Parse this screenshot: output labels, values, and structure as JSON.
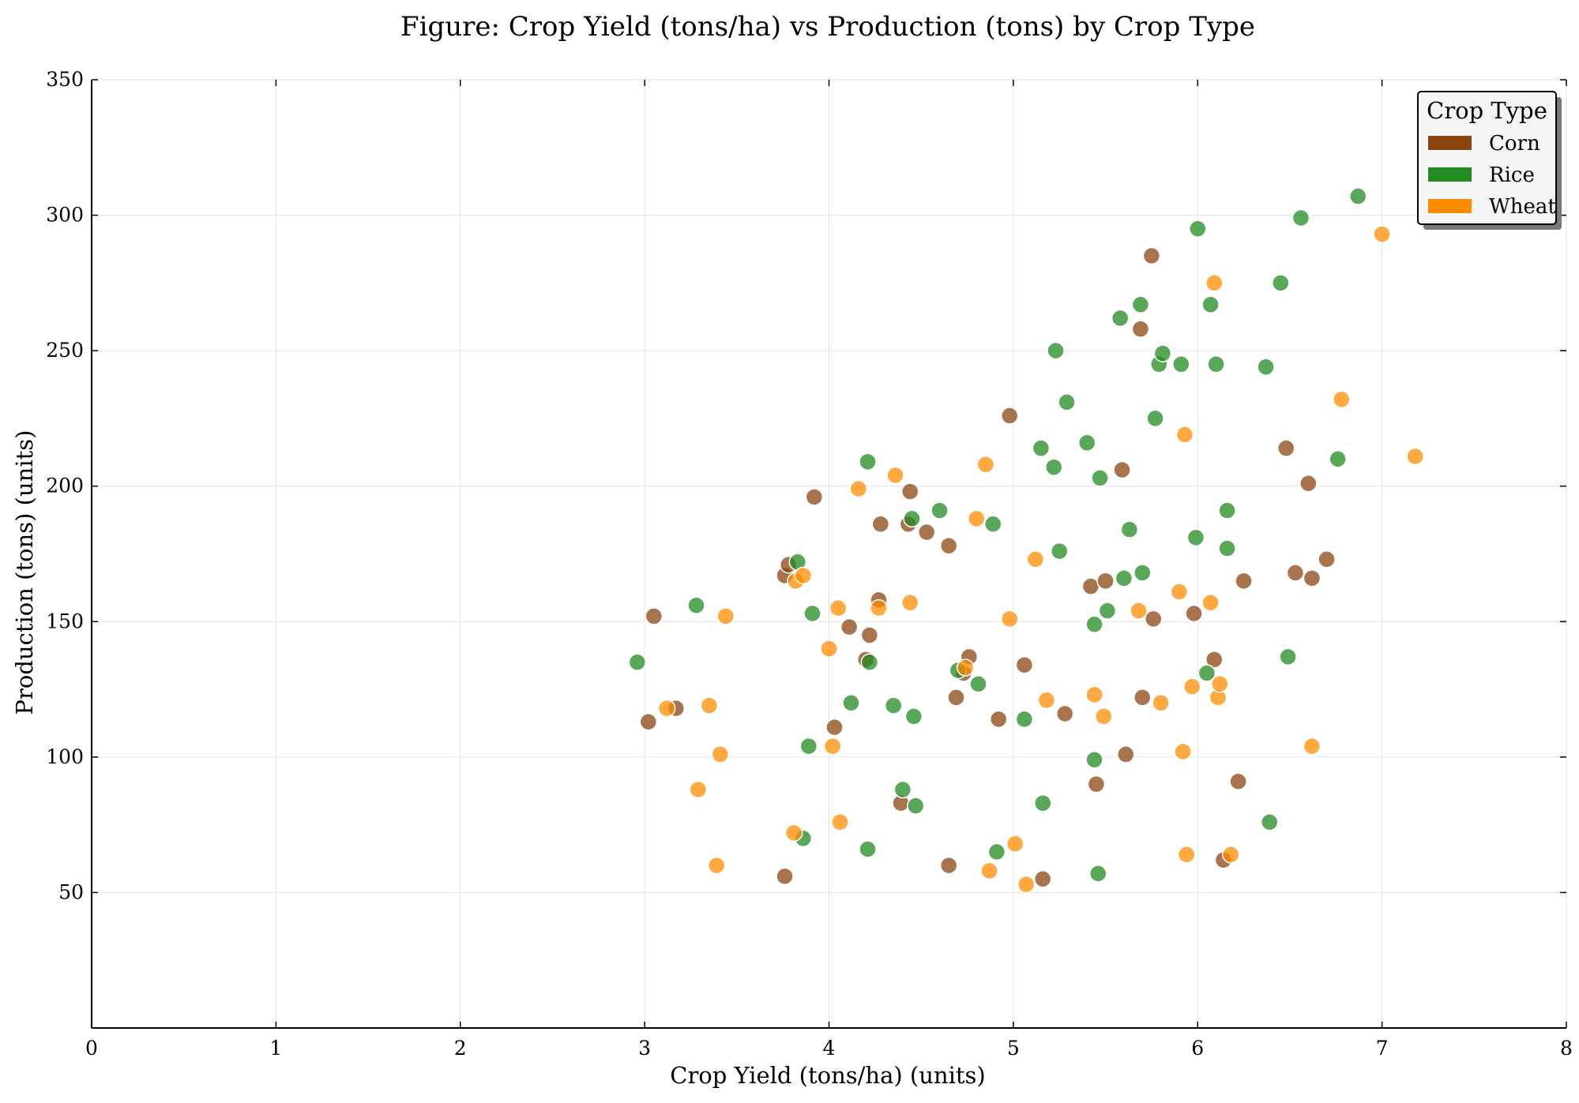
{
  "chart_data": {
    "type": "scatter",
    "title": "Figure: Crop Yield (tons/ha) vs Production (tons) by Crop Type",
    "xlabel": "Crop Yield (tons/ha) (units)",
    "ylabel": "Production (tons) (units)",
    "xlim": [
      0,
      8
    ],
    "ylim": [
      0,
      350
    ],
    "xticks": [
      0,
      1,
      2,
      3,
      4,
      5,
      6,
      7,
      8
    ],
    "yticks": [
      50,
      100,
      150,
      200,
      250,
      300,
      350
    ],
    "grid": true,
    "legend": {
      "title": "Crop Type",
      "placement": "top-right"
    },
    "series": [
      {
        "name": "Corn",
        "color": "#8B4513",
        "points": [
          [
            3.02,
            113
          ],
          [
            3.05,
            152
          ],
          [
            3.17,
            118
          ],
          [
            3.76,
            56
          ],
          [
            3.76,
            167
          ],
          [
            3.78,
            171
          ],
          [
            3.92,
            196
          ],
          [
            4.03,
            111
          ],
          [
            4.11,
            148
          ],
          [
            4.2,
            136
          ],
          [
            4.22,
            145
          ],
          [
            4.27,
            158
          ],
          [
            4.28,
            186
          ],
          [
            4.39,
            83
          ],
          [
            4.43,
            186
          ],
          [
            4.44,
            198
          ],
          [
            4.53,
            183
          ],
          [
            4.65,
            60
          ],
          [
            4.65,
            178
          ],
          [
            4.69,
            122
          ],
          [
            4.73,
            131
          ],
          [
            4.76,
            137
          ],
          [
            4.92,
            114
          ],
          [
            4.98,
            226
          ],
          [
            5.06,
            134
          ],
          [
            5.16,
            55
          ],
          [
            5.28,
            116
          ],
          [
            5.42,
            163
          ],
          [
            5.45,
            90
          ],
          [
            5.5,
            165
          ],
          [
            5.59,
            206
          ],
          [
            5.61,
            101
          ],
          [
            5.69,
            258
          ],
          [
            5.7,
            122
          ],
          [
            5.75,
            285
          ],
          [
            5.76,
            151
          ],
          [
            5.98,
            153
          ],
          [
            6.09,
            136
          ],
          [
            6.14,
            62
          ],
          [
            6.22,
            91
          ],
          [
            6.25,
            165
          ],
          [
            6.48,
            214
          ],
          [
            6.53,
            168
          ],
          [
            6.6,
            201
          ],
          [
            6.62,
            166
          ],
          [
            6.7,
            173
          ]
        ]
      },
      {
        "name": "Rice",
        "color": "#228B22",
        "points": [
          [
            2.96,
            135
          ],
          [
            3.28,
            156
          ],
          [
            3.83,
            172
          ],
          [
            3.86,
            70
          ],
          [
            3.89,
            104
          ],
          [
            3.91,
            153
          ],
          [
            4.12,
            120
          ],
          [
            4.21,
            66
          ],
          [
            4.21,
            209
          ],
          [
            4.22,
            135
          ],
          [
            4.35,
            119
          ],
          [
            4.4,
            88
          ],
          [
            4.45,
            188
          ],
          [
            4.46,
            115
          ],
          [
            4.47,
            82
          ],
          [
            4.6,
            191
          ],
          [
            4.7,
            132
          ],
          [
            4.81,
            127
          ],
          [
            4.89,
            186
          ],
          [
            4.91,
            65
          ],
          [
            5.06,
            114
          ],
          [
            5.15,
            214
          ],
          [
            5.16,
            83
          ],
          [
            5.22,
            207
          ],
          [
            5.23,
            250
          ],
          [
            5.25,
            176
          ],
          [
            5.29,
            231
          ],
          [
            5.4,
            216
          ],
          [
            5.44,
            149
          ],
          [
            5.44,
            99
          ],
          [
            5.46,
            57
          ],
          [
            5.47,
            203
          ],
          [
            5.51,
            154
          ],
          [
            5.58,
            262
          ],
          [
            5.6,
            166
          ],
          [
            5.63,
            184
          ],
          [
            5.69,
            267
          ],
          [
            5.7,
            168
          ],
          [
            5.77,
            225
          ],
          [
            5.79,
            245
          ],
          [
            5.81,
            249
          ],
          [
            5.91,
            245
          ],
          [
            5.99,
            181
          ],
          [
            6.05,
            131
          ],
          [
            6.07,
            267
          ],
          [
            6.1,
            245
          ],
          [
            6.16,
            177
          ],
          [
            6.16,
            191
          ],
          [
            6.37,
            244
          ],
          [
            6.39,
            76
          ],
          [
            6.45,
            275
          ],
          [
            6.49,
            137
          ],
          [
            6.56,
            299
          ],
          [
            6.76,
            210
          ],
          [
            6.87,
            307
          ],
          [
            6.0,
            295
          ]
        ]
      },
      {
        "name": "Wheat",
        "color": "#FF8C00",
        "points": [
          [
            3.12,
            118
          ],
          [
            3.29,
            88
          ],
          [
            3.35,
            119
          ],
          [
            3.39,
            60
          ],
          [
            3.41,
            101
          ],
          [
            3.44,
            152
          ],
          [
            3.81,
            72
          ],
          [
            3.82,
            165
          ],
          [
            3.86,
            167
          ],
          [
            4.0,
            140
          ],
          [
            4.02,
            104
          ],
          [
            4.05,
            155
          ],
          [
            4.06,
            76
          ],
          [
            4.16,
            199
          ],
          [
            4.27,
            155
          ],
          [
            4.36,
            204
          ],
          [
            4.44,
            157
          ],
          [
            4.74,
            133
          ],
          [
            4.8,
            188
          ],
          [
            4.85,
            208
          ],
          [
            4.87,
            58
          ],
          [
            4.98,
            151
          ],
          [
            5.01,
            68
          ],
          [
            5.07,
            53
          ],
          [
            5.12,
            173
          ],
          [
            5.18,
            121
          ],
          [
            5.44,
            123
          ],
          [
            5.49,
            115
          ],
          [
            5.68,
            154
          ],
          [
            5.8,
            120
          ],
          [
            5.9,
            161
          ],
          [
            5.92,
            102
          ],
          [
            5.93,
            219
          ],
          [
            5.94,
            64
          ],
          [
            5.97,
            126
          ],
          [
            6.07,
            157
          ],
          [
            6.09,
            275
          ],
          [
            6.11,
            122
          ],
          [
            6.12,
            127
          ],
          [
            6.18,
            64
          ],
          [
            6.62,
            104
          ],
          [
            6.78,
            232
          ],
          [
            7.0,
            293
          ],
          [
            7.18,
            211
          ]
        ]
      }
    ]
  }
}
